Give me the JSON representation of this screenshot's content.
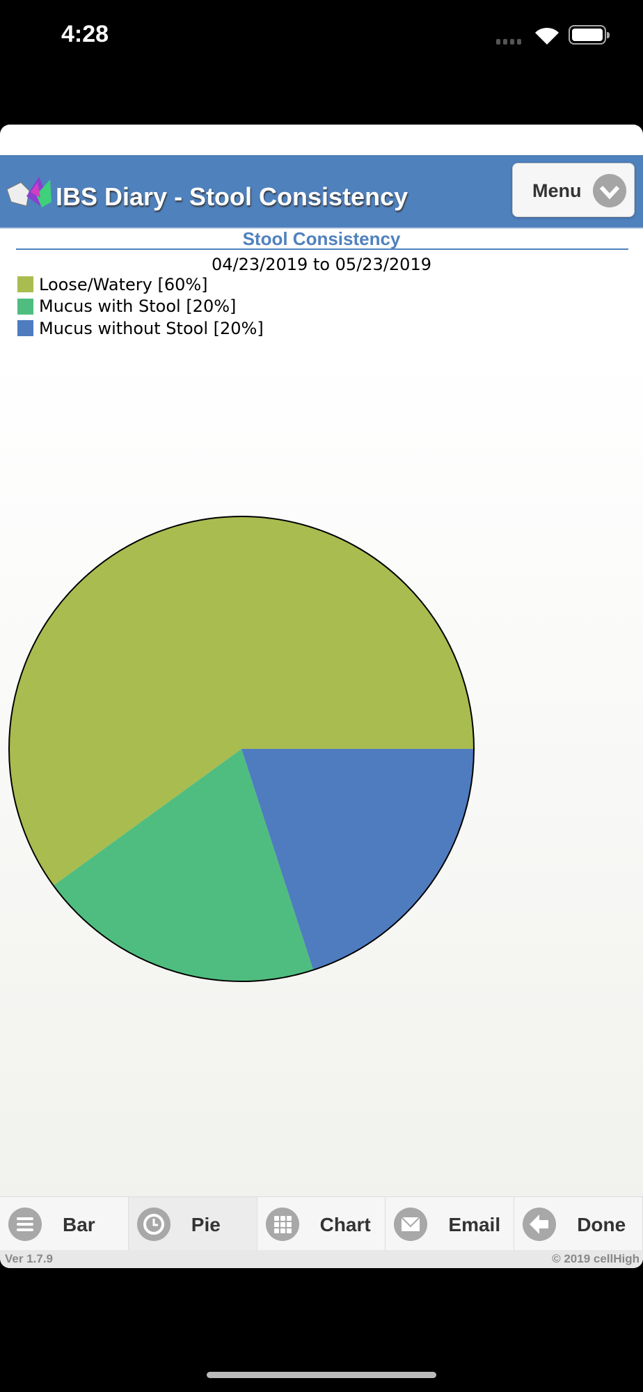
{
  "status_bar": {
    "time": "4:28"
  },
  "header": {
    "title": "IBS Diary - Stool Consistency",
    "menu_label": "Menu"
  },
  "chart_data": {
    "type": "pie",
    "title": "Stool Consistency",
    "subtitle": "04/23/2019 to 05/23/2019",
    "legend_position": "top-left",
    "slices": [
      {
        "label": "Loose/Watery [60%]",
        "value": 60,
        "color": "#a9bc50"
      },
      {
        "label": "Mucus with Stool [20%]",
        "value": 20,
        "color": "#4fbd7f"
      },
      {
        "label": "Mucus without Stool [20%]",
        "value": 20,
        "color": "#4f7bbf"
      }
    ]
  },
  "tabs": [
    {
      "label": "Bar",
      "icon": "list-icon"
    },
    {
      "label": "Pie",
      "icon": "clock-icon",
      "active": true
    },
    {
      "label": "Chart",
      "icon": "grid-icon"
    },
    {
      "label": "Email",
      "icon": "envelope-icon"
    },
    {
      "label": "Done",
      "icon": "arrow-left-icon"
    }
  ],
  "footer": {
    "version": "Ver 1.7.9",
    "copyright": "© 2019 cellHigh"
  }
}
